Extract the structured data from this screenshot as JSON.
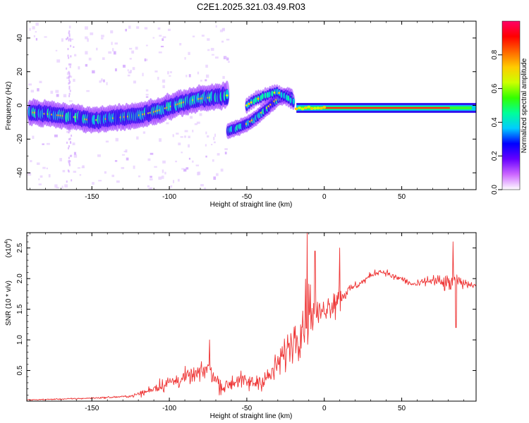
{
  "title": "C2E1.2025.321.03.49.R03",
  "chart_data": [
    {
      "type": "heatmap",
      "title": "C2E1.2025.321.03.49.R03",
      "xlabel": "Height of straight line (km)",
      "ylabel": "Frequency (Hz)",
      "xlim": [
        -192,
        98
      ],
      "ylim": [
        -50,
        50
      ],
      "xticks": [
        -150,
        -100,
        -50,
        0,
        50
      ],
      "yticks": [
        -40,
        -20,
        0,
        20,
        40
      ],
      "grid": false,
      "colorbar": {
        "label": "Normalized spectral amplitude",
        "range": [
          0,
          1
        ],
        "ticks": [
          0.0,
          0.2,
          0.4,
          0.6,
          0.8
        ],
        "colors": [
          "#ffffff",
          "#cc66ff",
          "#6600ff",
          "#0000ff",
          "#00ccff",
          "#00ff99",
          "#33ff00",
          "#ccff00",
          "#ffcc00",
          "#ff6600",
          "#ff0000",
          "#ff0066"
        ]
      },
      "ridge": {
        "x": [
          -190,
          -180,
          -170,
          -160,
          -150,
          -140,
          -130,
          -120,
          -110,
          -100,
          -90,
          -80,
          -70,
          -62
        ],
        "freq": [
          -4,
          -5,
          -6,
          -7,
          -9,
          -8,
          -7,
          -6,
          -4,
          -1,
          2,
          4,
          5,
          6
        ]
      },
      "branch": {
        "x": [
          -62,
          -55,
          -50,
          -45,
          -40,
          -35,
          -30,
          -25,
          -20
        ],
        "freq": [
          -15,
          -13,
          -11,
          -8,
          -4,
          0,
          4,
          6,
          5
        ]
      },
      "upper_branch": {
        "x": [
          -50,
          -45,
          -40,
          -35,
          -30,
          -25,
          -20
        ],
        "freq": [
          0,
          3,
          5,
          7,
          8,
          5,
          2
        ]
      },
      "carrier": {
        "x_start": -18,
        "x_end": 97,
        "freq": -1.5
      }
    },
    {
      "type": "line",
      "xlabel": "Height of straight line (km)",
      "ylabel": "SNR (10 * v/v)",
      "yscale_label": "(x10",
      "yscale_exp": "4",
      "xlim": [
        -192,
        98
      ],
      "ylim": [
        0,
        2.75
      ],
      "xticks": [
        -150,
        -100,
        -50,
        0,
        50
      ],
      "yticks": [
        0.5,
        1.0,
        1.5,
        2.0,
        2.5
      ],
      "grid": false,
      "line_color": "#ee3333",
      "envelope": {
        "x": [
          -192,
          -160,
          -140,
          -125,
          -115,
          -110,
          -100,
          -90,
          -80,
          -75,
          -70,
          -65,
          -60,
          -55,
          -50,
          -45,
          -40,
          -35,
          -30,
          -25,
          -20,
          -15,
          -12,
          -10,
          -8,
          -5,
          -2,
          0,
          5,
          10,
          15,
          20,
          25,
          30,
          35,
          40,
          45,
          50,
          55,
          60,
          65,
          70,
          75,
          80,
          85,
          90,
          97
        ],
        "y": [
          0.02,
          0.04,
          0.06,
          0.08,
          0.15,
          0.22,
          0.3,
          0.38,
          0.45,
          0.55,
          0.35,
          0.22,
          0.3,
          0.35,
          0.3,
          0.3,
          0.35,
          0.4,
          0.6,
          0.8,
          1.0,
          1.2,
          1.4,
          1.5,
          1.5,
          1.4,
          1.45,
          1.5,
          1.6,
          1.7,
          1.8,
          1.88,
          1.95,
          2.05,
          2.12,
          2.1,
          2.02,
          2.0,
          1.92,
          1.9,
          1.95,
          1.97,
          1.93,
          1.9,
          1.97,
          1.92,
          1.9
        ]
      },
      "noise": {
        "x": [
          -192,
          -125,
          -115,
          -100,
          -60,
          -45,
          -30,
          -20,
          -12,
          -8,
          -5,
          0,
          10,
          15,
          25,
          60,
          80,
          90,
          97
        ],
        "amp": [
          0.015,
          0.03,
          0.12,
          0.25,
          0.25,
          0.25,
          0.4,
          0.6,
          0.9,
          0.9,
          0.5,
          0.3,
          0.55,
          0.15,
          0.1,
          0.1,
          0.3,
          0.12,
          0.08
        ]
      },
      "peaks": [
        {
          "x": -74,
          "y": 1.0
        },
        {
          "x": -11,
          "y": 2.75
        },
        {
          "x": -6,
          "y": 2.45
        },
        {
          "x": 10,
          "y": 2.5
        },
        {
          "x": 83,
          "y": 2.6
        },
        {
          "x": 85,
          "y": 1.2
        }
      ]
    }
  ]
}
